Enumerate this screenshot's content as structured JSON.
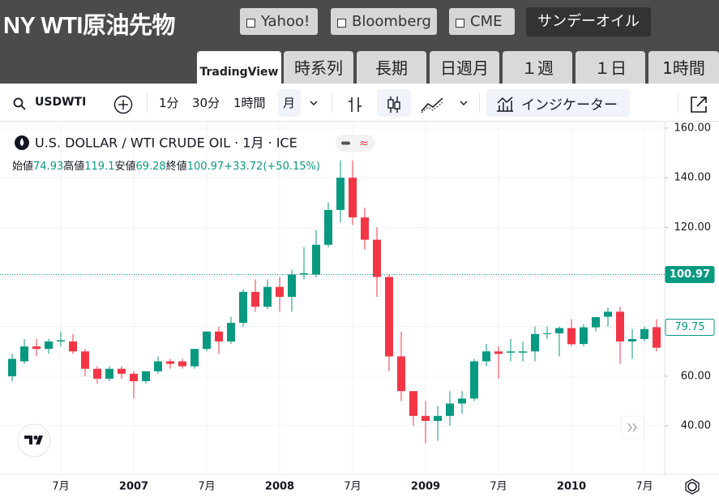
{
  "header": {
    "title": "NY WTI原油先物",
    "links": [
      "Yahoo!",
      "Bloomberg",
      "CME"
    ],
    "special": "サンデーオイル"
  },
  "tabs": [
    "TradingView",
    "時系列",
    "長期",
    "日週月",
    "１週",
    "１日",
    "1時間"
  ],
  "toolbar": {
    "symbol": "USDWTI",
    "intervals": [
      "1分",
      "30分",
      "1時間",
      "月"
    ],
    "indicators": "インジケーター"
  },
  "chart_data": {
    "type": "candlestick",
    "title": "U.S. DOLLAR / WTI CRUDE OIL · 1月 · ICE",
    "ohlc_legend": [
      {
        "label": "始値",
        "value": 74.93
      },
      {
        "label": "高値",
        "value": 119.1
      },
      {
        "label": "安値",
        "value": 69.28
      },
      {
        "label": "終値",
        "value": 100.97
      }
    ],
    "change": {
      "value": 33.72,
      "label": "+33.72"
    },
    "change_percent": {
      "value": 50.15,
      "label": "(+50.15%)"
    },
    "categories": [
      null,
      null,
      null,
      null,
      "7月",
      null,
      null,
      null,
      null,
      null,
      "2007",
      null,
      null,
      null,
      null,
      null,
      "7月",
      null,
      null,
      null,
      null,
      null,
      "2008",
      null,
      null,
      null,
      null,
      null,
      "7月",
      null,
      null,
      null,
      null,
      null,
      "2009",
      null,
      null,
      null,
      null,
      null,
      "7月",
      null,
      null,
      null,
      null,
      null,
      "2010",
      null,
      null,
      null,
      null,
      null,
      "7月",
      null
    ],
    "open": [
      60,
      66,
      72,
      71,
      74,
      74,
      70,
      63,
      59,
      63,
      61,
      58,
      62,
      66,
      66,
      64,
      71,
      78,
      74,
      81.5,
      94,
      88,
      96,
      92,
      101,
      101,
      113,
      127,
      140,
      124,
      115,
      100,
      68,
      54,
      44,
      42,
      44,
      49,
      51,
      66,
      70,
      69.5,
      69.5,
      70,
      77,
      77.3,
      79.4,
      73,
      79.7,
      84,
      86,
      74,
      75,
      79.75
    ],
    "high": [
      69,
      75,
      75,
      75,
      78,
      77,
      71,
      64,
      64,
      64,
      62,
      62,
      68,
      67,
      67,
      71,
      78,
      80,
      84,
      95,
      99,
      99,
      100,
      103,
      112,
      119,
      130,
      147,
      147,
      128,
      120,
      101,
      78,
      54,
      50,
      48,
      54,
      54,
      67,
      73,
      72,
      75,
      74,
      80,
      80,
      80,
      83,
      81,
      84,
      87.6,
      88,
      79,
      80,
      83
    ],
    "low": [
      58,
      65,
      68,
      69,
      72,
      69,
      60,
      57,
      58,
      59,
      51,
      57,
      61,
      63,
      63,
      63,
      70,
      69,
      73,
      80,
      86,
      87,
      86,
      86,
      99,
      100,
      112,
      122,
      121,
      111,
      92,
      62,
      50,
      40,
      33,
      34,
      40,
      45,
      50,
      64,
      59,
      66,
      66,
      66,
      75,
      68,
      72,
      72,
      78,
      80,
      65,
      67,
      74,
      70
    ],
    "close": [
      67,
      72,
      71,
      74,
      74.5,
      70,
      63,
      59,
      63,
      61,
      58,
      62,
      66,
      65,
      64,
      71,
      78,
      74,
      81.5,
      94,
      88,
      96,
      92,
      101,
      101.5,
      113,
      127,
      140,
      124,
      115,
      100,
      68,
      54,
      44,
      42,
      44,
      49,
      51,
      66,
      70,
      69,
      70,
      70,
      77,
      77.3,
      79.4,
      72.9,
      79.7,
      83.8,
      86,
      74,
      75,
      79,
      71.5
    ],
    "up_color": "#089981",
    "down_color": "#f23645",
    "ylim": [
      20.4,
      162.6
    ],
    "yticks": [
      {
        "value": 40,
        "label": "40.00"
      },
      {
        "value": 60,
        "label": "60.00"
      },
      {
        "value": 80,
        "label": "80.00"
      },
      {
        "value": 100,
        "label": "100.00"
      },
      {
        "value": 120,
        "label": "120.00"
      },
      {
        "value": 140,
        "label": "140.00"
      },
      {
        "value": 160,
        "label": "160.00"
      }
    ],
    "price_labels": [
      {
        "value": 100.97,
        "label": "100.97",
        "style": "filled"
      },
      {
        "value": 79.75,
        "label": "79.75",
        "style": "outline"
      }
    ],
    "grid": true
  }
}
